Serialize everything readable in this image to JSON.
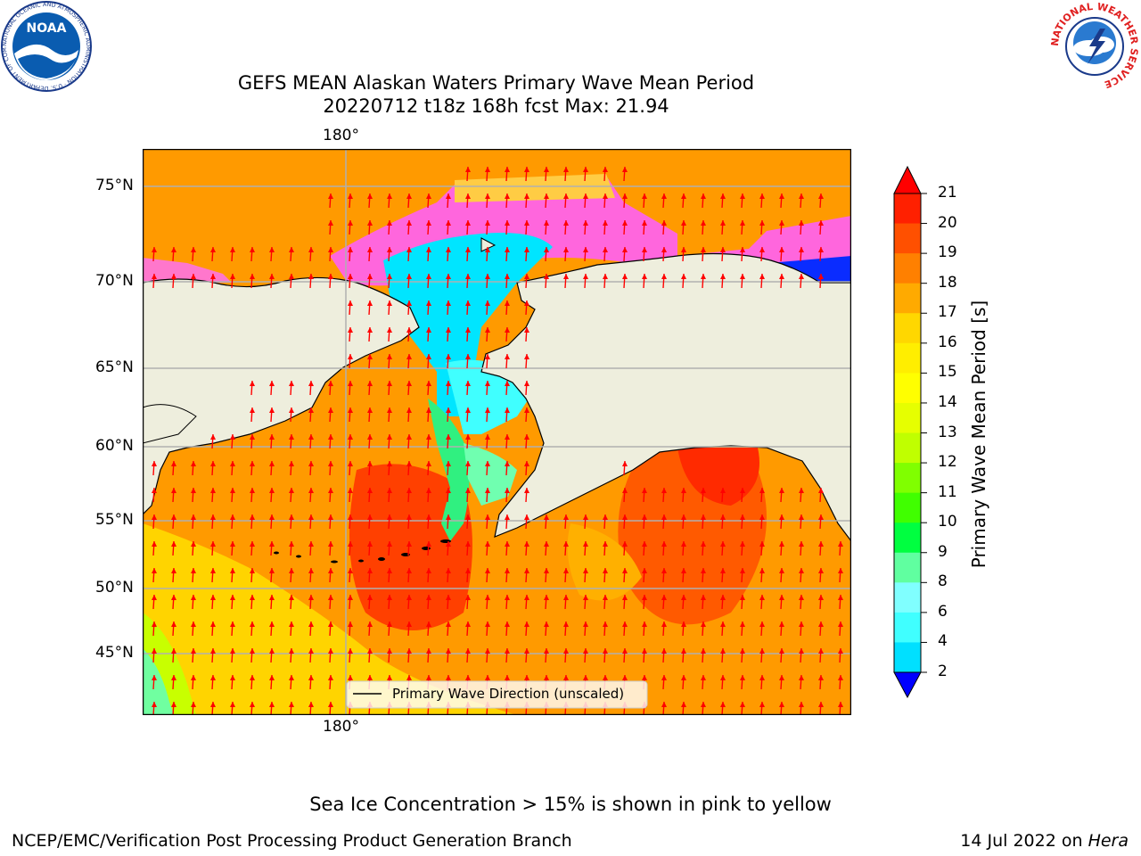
{
  "header": {
    "title_line1": "GEFS MEAN Alaskan Waters Primary Wave Mean Period",
    "title_line2": "20220712 t18z 168h fcst   Max: 21.94"
  },
  "logos": {
    "left": {
      "text": "NOAA",
      "ring_text": "NATIONAL OCEANIC AND ATMOSPHERIC ADMINISTRATION · U.S. DEPARTMENT OF COMMERCE",
      "icon": "noaa-logo"
    },
    "right": {
      "ring_text": "NATIONAL WEATHER SERVICE",
      "icon": "nws-logo"
    }
  },
  "map": {
    "lon_label_top": "180°",
    "lon_label_bottom": "180°",
    "lat_labels": [
      "75°N",
      "70°N",
      "65°N",
      "60°N",
      "55°N",
      "50°N",
      "45°N"
    ],
    "legend_text": "Primary Wave Direction (unscaled)",
    "colors": {
      "land": "#eeeedd",
      "frame": "#000000",
      "grid": "#b0b0b0",
      "arrow": "#ff0000"
    }
  },
  "colorbar": {
    "label": "Primary Wave Mean Period [s]",
    "ticks": [
      "21",
      "20",
      "19",
      "18",
      "17",
      "16",
      "15",
      "14",
      "13",
      "12",
      "11",
      "10",
      "9",
      "8",
      "6",
      "4",
      "2"
    ],
    "colors": [
      "#ff2000",
      "#ff5000",
      "#ff8000",
      "#ffaa00",
      "#ffd700",
      "#ffee00",
      "#ffff00",
      "#e6ff00",
      "#c0ff00",
      "#80ff00",
      "#40ff00",
      "#00ff40",
      "#60ffa0",
      "#80ffff",
      "#40ffff",
      "#00e0ff",
      "#0080ff"
    ],
    "extend_max_color": "#ff0000",
    "extend_min_color": "#0000ff"
  },
  "notes": {
    "sea_ice": "Sea Ice Concentration > 15% is shown in pink to yellow"
  },
  "footer": {
    "left": "NCEP/EMC/Verification Post Processing Product Generation Branch",
    "right_date": "14 Jul 2022 on ",
    "right_host": "Hera"
  }
}
